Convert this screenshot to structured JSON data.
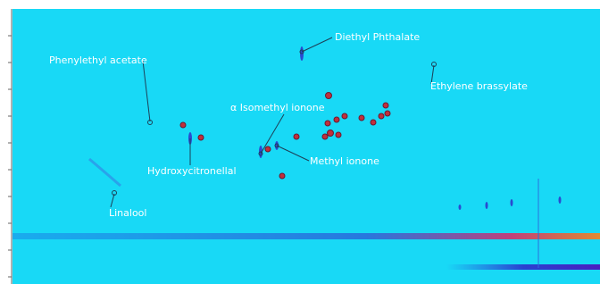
{
  "annotations": [
    {
      "label": "Diethyl Phthalate"
    },
    {
      "label": "Phenylethyl acetate"
    },
    {
      "label": "Ethylene brassylate"
    },
    {
      "label": "α Isomethyl ionone"
    },
    {
      "label": "Methyl ionone"
    },
    {
      "label": "Hydroxycitronellal"
    },
    {
      "label": "Linalool"
    }
  ]
}
